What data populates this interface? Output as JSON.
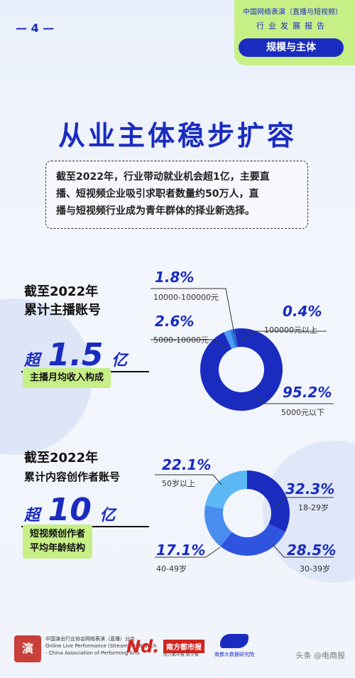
{
  "header": {
    "page_number": "4",
    "tag_line1": "中国网络表演（直播与短视频）",
    "tag_line2": "行业发展报告",
    "tag_section": "规模与主体"
  },
  "title": "从业主体稳步扩容",
  "intro": {
    "line1": "截至2022年，行业带动就业机会超1亿，主要直",
    "line2": "播、短视频企业吸引求职者数量约50万人，直",
    "line3": "播与短视频行业成为青年群体的择业新选择。"
  },
  "section1": {
    "head1": "截至2022年",
    "head2": "累计主播账号",
    "prefix": "超",
    "number": "1.5",
    "unit": "亿",
    "chart_label": "主播月均收入构成"
  },
  "section2": {
    "head1": "截至2022年",
    "head2": "累计内容创作者账号",
    "prefix": "超",
    "number": "10",
    "unit": "亿",
    "chart_label1": "短视频创作者",
    "chart_label2": "平均年龄结构"
  },
  "chart_data": [
    {
      "type": "pie",
      "title": "主播月均收入构成",
      "categories": [
        "5000元以下",
        "5000-10000元",
        "10000-100000元",
        "100000元以上"
      ],
      "values": [
        95.2,
        2.6,
        1.8,
        0.4
      ],
      "labels": [
        "95.2%",
        "2.6%",
        "1.8%",
        "0.4%"
      ],
      "colors": [
        "#1a2cc0",
        "#4a9df0",
        "#2b6fe0",
        "#0d1a90"
      ]
    },
    {
      "type": "pie",
      "title": "短视频创作者平均年龄结构",
      "categories": [
        "18-29岁",
        "30-39岁",
        "40-49岁",
        "50岁以上"
      ],
      "values": [
        32.3,
        28.5,
        17.1,
        22.1
      ],
      "labels": [
        "32.3%",
        "28.5%",
        "17.1%",
        "22.1%"
      ],
      "colors": [
        "#1a2cc0",
        "#2f55e0",
        "#4a8df0",
        "#5cb8f5"
      ]
    }
  ],
  "footer": {
    "org_line1": "中国演出行业协会网络表演（直播）分会",
    "org_line2": "Online Live Performance (Streaming) Branch",
    "org_line3": "- China Association of Performing Arts",
    "nd_logo": "Nd.",
    "nd_paper": "南方都市报",
    "nd_sub": "南方都市报 数字报",
    "bigdata": "南都大数据研究院",
    "watermark": "头条 @电商报"
  }
}
